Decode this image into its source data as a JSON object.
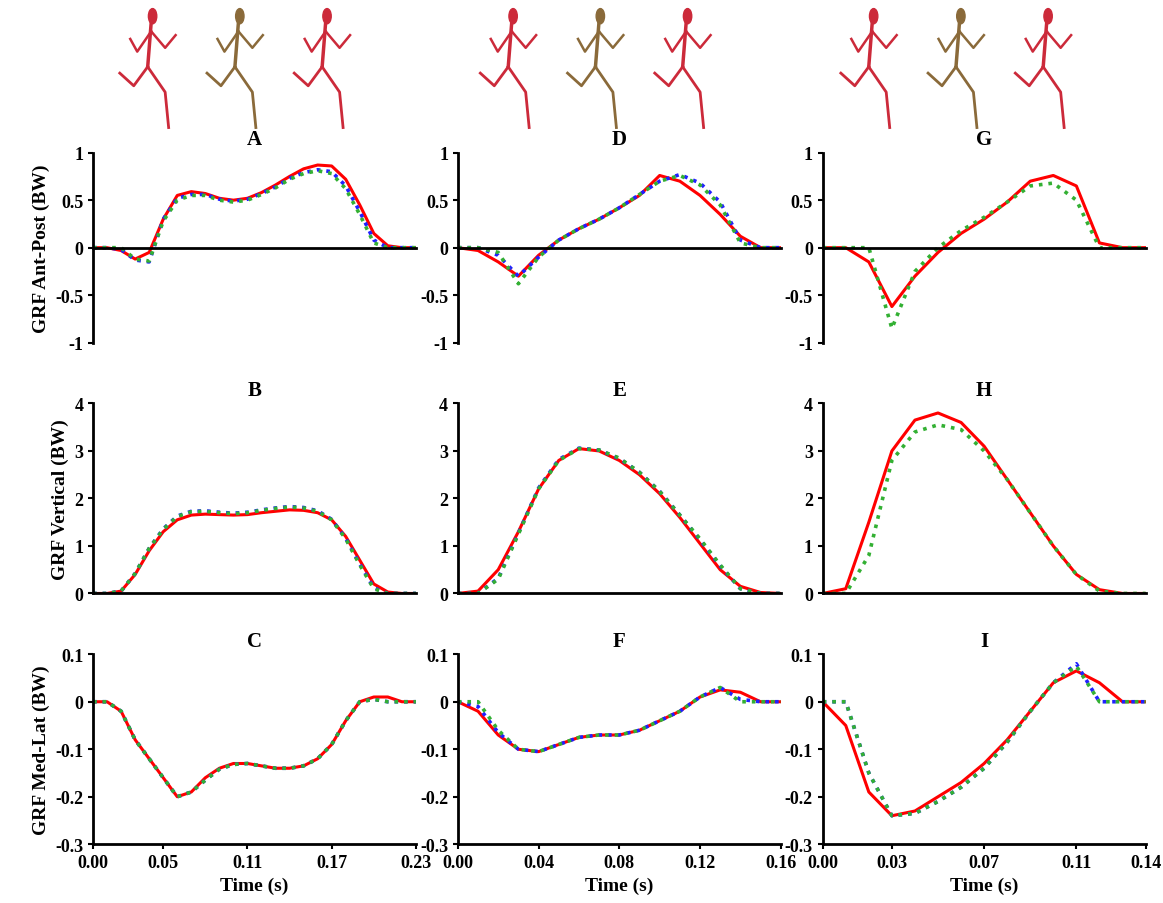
{
  "chart_data": [
    {
      "type": "line",
      "title": "A",
      "y_label": "GRF Ant-Post (BW)",
      "x": [
        0,
        0.01,
        0.02,
        0.03,
        0.04,
        0.05,
        0.06,
        0.07,
        0.08,
        0.09,
        0.1,
        0.11,
        0.12,
        0.13,
        0.14,
        0.15,
        0.16,
        0.17,
        0.18,
        0.19,
        0.2,
        0.21,
        0.22,
        0.23
      ],
      "xlim": [
        0,
        0.23
      ],
      "ylim": [
        -1,
        1
      ],
      "yticks": [
        -1,
        -0.5,
        0,
        0.5,
        1
      ],
      "tick_labels": "y",
      "series": [
        {
          "color": "#ff0000",
          "line_style": "solid",
          "values": [
            0,
            0,
            -0.03,
            -0.12,
            -0.05,
            0.3,
            0.55,
            0.59,
            0.57,
            0.52,
            0.5,
            0.52,
            0.58,
            0.66,
            0.75,
            0.83,
            0.87,
            0.86,
            0.72,
            0.45,
            0.15,
            0.02,
            0,
            0
          ]
        },
        {
          "color": "#2020ff",
          "line_style": "dotted",
          "values": [
            0,
            0,
            -0.02,
            -0.13,
            -0.15,
            0.3,
            0.52,
            0.56,
            0.56,
            0.51,
            0.49,
            0.51,
            0.57,
            0.64,
            0.73,
            0.79,
            0.82,
            0.8,
            0.65,
            0.38,
            0.08,
            0,
            0,
            0
          ]
        },
        {
          "color": "#33b033",
          "line_style": "dotted",
          "values": [
            0,
            0,
            0,
            -0.12,
            -0.14,
            0.28,
            0.5,
            0.55,
            0.55,
            0.5,
            0.48,
            0.5,
            0.56,
            0.63,
            0.72,
            0.78,
            0.81,
            0.78,
            0.62,
            0.35,
            0.05,
            0,
            0,
            0
          ]
        }
      ]
    },
    {
      "type": "line",
      "title": "B",
      "y_label": "GRF Vertical (BW)",
      "x": [
        0,
        0.01,
        0.02,
        0.03,
        0.04,
        0.05,
        0.06,
        0.07,
        0.08,
        0.09,
        0.1,
        0.11,
        0.12,
        0.13,
        0.14,
        0.15,
        0.16,
        0.17,
        0.18,
        0.19,
        0.2,
        0.21,
        0.22,
        0.23
      ],
      "xlim": [
        0,
        0.23
      ],
      "ylim": [
        0,
        4
      ],
      "yticks": [
        0,
        1,
        2,
        3,
        4
      ],
      "tick_labels": "y",
      "series": [
        {
          "color": "#ff0000",
          "line_style": "solid",
          "values": [
            0,
            0,
            0.05,
            0.4,
            0.9,
            1.3,
            1.55,
            1.65,
            1.67,
            1.66,
            1.65,
            1.66,
            1.7,
            1.73,
            1.76,
            1.75,
            1.7,
            1.55,
            1.2,
            0.7,
            0.2,
            0.03,
            0,
            0
          ]
        },
        {
          "color": "#2020ff",
          "line_style": "dotted",
          "values": [
            0,
            0,
            0.05,
            0.42,
            0.95,
            1.36,
            1.63,
            1.73,
            1.74,
            1.71,
            1.69,
            1.71,
            1.76,
            1.8,
            1.83,
            1.81,
            1.74,
            1.56,
            1.16,
            0.62,
            0.12,
            0,
            0,
            0
          ]
        },
        {
          "color": "#33b033",
          "line_style": "dotted",
          "values": [
            0,
            0,
            0.05,
            0.42,
            0.95,
            1.35,
            1.62,
            1.72,
            1.73,
            1.7,
            1.68,
            1.7,
            1.75,
            1.79,
            1.82,
            1.8,
            1.73,
            1.55,
            1.15,
            0.6,
            0.1,
            0,
            0,
            0
          ]
        }
      ]
    },
    {
      "type": "line",
      "title": "C",
      "y_label": "GRF Med-Lat (BW)",
      "x_label": "Time (s)",
      "x": [
        0,
        0.01,
        0.02,
        0.03,
        0.04,
        0.05,
        0.06,
        0.07,
        0.08,
        0.09,
        0.1,
        0.11,
        0.12,
        0.13,
        0.14,
        0.15,
        0.16,
        0.17,
        0.18,
        0.19,
        0.2,
        0.21,
        0.22,
        0.23
      ],
      "xlim": [
        0,
        0.23
      ],
      "xticks": [
        {
          "value": 0,
          "label": "0.00"
        },
        {
          "value": 0.05,
          "label": "0.05"
        },
        {
          "value": 0.11,
          "label": "0.11"
        },
        {
          "value": 0.17,
          "label": "0.17"
        },
        {
          "value": 0.23,
          "label": "0.23"
        }
      ],
      "ylim": [
        -0.3,
        0.1
      ],
      "yticks": [
        -0.3,
        -0.2,
        -0.1,
        0,
        0.1
      ],
      "series": [
        {
          "color": "#ff0000",
          "line_style": "solid",
          "values": [
            0,
            0,
            -0.02,
            -0.08,
            -0.12,
            -0.16,
            -0.2,
            -0.19,
            -0.16,
            -0.14,
            -0.13,
            -0.13,
            -0.135,
            -0.14,
            -0.14,
            -0.135,
            -0.12,
            -0.09,
            -0.04,
            0,
            0.01,
            0.01,
            0,
            0
          ]
        },
        {
          "color": "#2020ff",
          "line_style": "dotted",
          "values": [
            0,
            0,
            -0.02,
            -0.08,
            -0.12,
            -0.16,
            -0.2,
            -0.19,
            -0.165,
            -0.142,
            -0.132,
            -0.13,
            -0.135,
            -0.14,
            -0.14,
            -0.135,
            -0.12,
            -0.09,
            -0.04,
            0,
            0.005,
            0,
            0,
            0
          ]
        },
        {
          "color": "#33b033",
          "line_style": "dotted",
          "values": [
            0,
            0,
            -0.02,
            -0.08,
            -0.12,
            -0.16,
            -0.2,
            -0.19,
            -0.165,
            -0.142,
            -0.132,
            -0.13,
            -0.135,
            -0.14,
            -0.14,
            -0.135,
            -0.12,
            -0.09,
            -0.04,
            0,
            0.005,
            0,
            0,
            0
          ]
        }
      ]
    },
    {
      "type": "line",
      "title": "D",
      "x": [
        0,
        0.01,
        0.02,
        0.03,
        0.04,
        0.05,
        0.06,
        0.07,
        0.08,
        0.09,
        0.1,
        0.11,
        0.12,
        0.13,
        0.14,
        0.15,
        0.16
      ],
      "xlim": [
        0,
        0.16
      ],
      "ylim": [
        -1,
        1
      ],
      "yticks": [
        -1,
        -0.5,
        0,
        0.5,
        1
      ],
      "tick_labels": "y",
      "series": [
        {
          "color": "#ff0000",
          "line_style": "solid",
          "values": [
            0,
            -0.03,
            -0.15,
            -0.3,
            -0.08,
            0.08,
            0.2,
            0.3,
            0.42,
            0.55,
            0.76,
            0.7,
            0.55,
            0.35,
            0.12,
            0,
            0
          ]
        },
        {
          "color": "#2020ff",
          "line_style": "dotted",
          "values": [
            0,
            0,
            -0.08,
            -0.3,
            -0.1,
            0.08,
            0.2,
            0.3,
            0.42,
            0.56,
            0.7,
            0.77,
            0.68,
            0.48,
            0.08,
            0,
            0
          ]
        },
        {
          "color": "#33b033",
          "line_style": "dotted",
          "values": [
            0,
            0,
            -0.05,
            -0.38,
            -0.1,
            0.08,
            0.2,
            0.3,
            0.42,
            0.56,
            0.7,
            0.76,
            0.66,
            0.45,
            0.05,
            0,
            0
          ]
        }
      ]
    },
    {
      "type": "line",
      "title": "E",
      "x": [
        0,
        0.01,
        0.02,
        0.03,
        0.04,
        0.05,
        0.06,
        0.07,
        0.08,
        0.09,
        0.1,
        0.11,
        0.12,
        0.13,
        0.14,
        0.15,
        0.16
      ],
      "xlim": [
        0,
        0.16
      ],
      "ylim": [
        0,
        4
      ],
      "yticks": [
        0,
        1,
        2,
        3,
        4
      ],
      "tick_labels": "y",
      "series": [
        {
          "color": "#ff0000",
          "line_style": "solid",
          "values": [
            0,
            0.05,
            0.5,
            1.3,
            2.2,
            2.8,
            3.05,
            3.0,
            2.8,
            2.5,
            2.1,
            1.6,
            1.05,
            0.5,
            0.15,
            0.02,
            0
          ]
        },
        {
          "color": "#2020ff",
          "line_style": "dotted",
          "values": [
            0,
            0,
            0.32,
            1.27,
            2.22,
            2.82,
            3.06,
            3.02,
            2.84,
            2.55,
            2.15,
            1.65,
            1.13,
            0.58,
            0.1,
            0,
            0
          ]
        },
        {
          "color": "#33b033",
          "line_style": "dotted",
          "values": [
            0,
            0,
            0.3,
            1.25,
            2.2,
            2.8,
            3.05,
            3.02,
            2.85,
            2.55,
            2.15,
            1.65,
            1.15,
            0.6,
            0.1,
            0,
            0
          ]
        }
      ]
    },
    {
      "type": "line",
      "title": "F",
      "x_label": "Time (s)",
      "x": [
        0,
        0.01,
        0.02,
        0.03,
        0.04,
        0.05,
        0.06,
        0.07,
        0.08,
        0.09,
        0.1,
        0.11,
        0.12,
        0.13,
        0.14,
        0.15,
        0.16
      ],
      "xlim": [
        0,
        0.16
      ],
      "xticks": [
        {
          "value": 0,
          "label": "0.00"
        },
        {
          "value": 0.04,
          "label": "0.04"
        },
        {
          "value": 0.08,
          "label": "0.08"
        },
        {
          "value": 0.12,
          "label": "0.12"
        },
        {
          "value": 0.16,
          "label": "0.16"
        }
      ],
      "ylim": [
        -0.3,
        0.1
      ],
      "yticks": [
        -0.3,
        -0.2,
        -0.1,
        0,
        0.1
      ],
      "series": [
        {
          "color": "#ff0000",
          "line_style": "solid",
          "values": [
            0,
            -0.02,
            -0.07,
            -0.1,
            -0.105,
            -0.09,
            -0.075,
            -0.07,
            -0.07,
            -0.06,
            -0.04,
            -0.02,
            0.01,
            0.025,
            0.02,
            0,
            0
          ]
        },
        {
          "color": "#2020ff",
          "line_style": "dotted",
          "values": [
            0,
            -0.01,
            -0.065,
            -0.1,
            -0.105,
            -0.09,
            -0.075,
            -0.07,
            -0.07,
            -0.06,
            -0.04,
            -0.02,
            0.01,
            0.03,
            0.005,
            0,
            0
          ]
        },
        {
          "color": "#33b033",
          "line_style": "dotted",
          "values": [
            0,
            0,
            -0.06,
            -0.1,
            -0.105,
            -0.09,
            -0.075,
            -0.07,
            -0.07,
            -0.06,
            -0.04,
            -0.02,
            0.01,
            0.03,
            0,
            0,
            0
          ]
        }
      ]
    },
    {
      "type": "line",
      "title": "G",
      "x": [
        0,
        0.01,
        0.02,
        0.03,
        0.04,
        0.05,
        0.06,
        0.07,
        0.08,
        0.09,
        0.1,
        0.11,
        0.12,
        0.13,
        0.14
      ],
      "xlim": [
        0,
        0.14
      ],
      "ylim": [
        -1,
        1
      ],
      "yticks": [
        -1,
        -0.5,
        0,
        0.5,
        1
      ],
      "tick_labels": "y",
      "series": [
        {
          "color": "#ff0000",
          "line_style": "solid",
          "values": [
            0,
            0,
            -0.15,
            -0.62,
            -0.3,
            -0.05,
            0.15,
            0.3,
            0.48,
            0.7,
            0.76,
            0.65,
            0.05,
            0,
            0
          ]
        },
        {
          "color": "#33b033",
          "line_style": "dotted",
          "values": [
            0,
            0,
            0,
            -0.85,
            -0.25,
            0,
            0.18,
            0.32,
            0.48,
            0.65,
            0.68,
            0.5,
            0,
            0,
            0
          ]
        }
      ]
    },
    {
      "type": "line",
      "title": "H",
      "x": [
        0,
        0.01,
        0.02,
        0.03,
        0.04,
        0.05,
        0.06,
        0.07,
        0.08,
        0.09,
        0.1,
        0.11,
        0.12,
        0.13,
        0.14
      ],
      "xlim": [
        0,
        0.14
      ],
      "ylim": [
        0,
        4
      ],
      "yticks": [
        0,
        1,
        2,
        3,
        4
      ],
      "tick_labels": "y",
      "series": [
        {
          "color": "#ff0000",
          "line_style": "solid",
          "values": [
            0,
            0.1,
            1.5,
            3.0,
            3.65,
            3.8,
            3.6,
            3.1,
            2.4,
            1.7,
            1.0,
            0.4,
            0.08,
            0,
            0
          ]
        },
        {
          "color": "#33b033",
          "line_style": "dotted",
          "values": [
            0,
            0,
            0.8,
            2.8,
            3.4,
            3.55,
            3.45,
            3.0,
            2.4,
            1.7,
            1.0,
            0.4,
            0.05,
            0,
            0
          ]
        }
      ]
    },
    {
      "type": "line",
      "title": "I",
      "x_label": "Time (s)",
      "x": [
        0,
        0.01,
        0.02,
        0.03,
        0.04,
        0.05,
        0.06,
        0.07,
        0.08,
        0.09,
        0.1,
        0.11,
        0.12,
        0.13,
        0.14
      ],
      "xlim": [
        0,
        0.14
      ],
      "xticks": [
        {
          "value": 0,
          "label": "0.00"
        },
        {
          "value": 0.03,
          "label": "0.03"
        },
        {
          "value": 0.07,
          "label": "0.07"
        },
        {
          "value": 0.11,
          "label": "0.11"
        },
        {
          "value": 0.14,
          "label": "0.14"
        }
      ],
      "ylim": [
        -0.3,
        0.1
      ],
      "yticks": [
        -0.3,
        -0.2,
        -0.1,
        0,
        0.1
      ],
      "series": [
        {
          "color": "#ff0000",
          "line_style": "solid",
          "values": [
            0,
            -0.05,
            -0.19,
            -0.24,
            -0.23,
            -0.2,
            -0.17,
            -0.13,
            -0.08,
            -0.02,
            0.04,
            0.065,
            0.04,
            0,
            0
          ]
        },
        {
          "color": "#2020ff",
          "line_style": "dotted",
          "values": [
            0,
            0,
            -0.15,
            -0.24,
            -0.235,
            -0.21,
            -0.18,
            -0.14,
            -0.085,
            -0.02,
            0.04,
            0.08,
            0,
            0,
            0
          ]
        },
        {
          "color": "#33b033",
          "line_style": "dotted",
          "values": [
            0,
            0,
            -0.15,
            -0.24,
            -0.235,
            -0.21,
            -0.18,
            -0.14,
            -0.085,
            -0.02,
            0.04,
            0.075,
            0,
            0,
            0
          ]
        }
      ]
    }
  ]
}
